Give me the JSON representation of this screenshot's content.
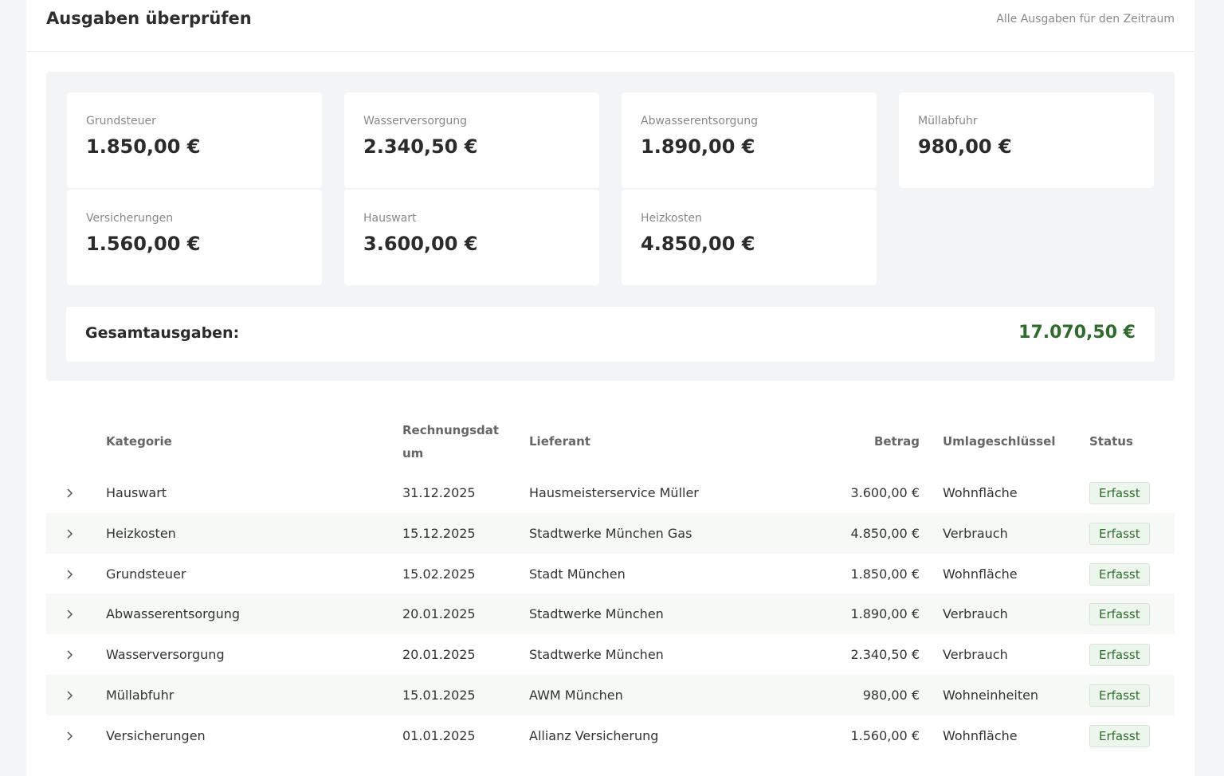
{
  "header": {
    "title": "Ausgaben überprüfen",
    "subtitle": "Alle Ausgaben für den Zeitraum"
  },
  "cards": [
    {
      "label": "Grundsteuer",
      "value": "1.850,00 €"
    },
    {
      "label": "Wasserversorgung",
      "value": "2.340,50 €"
    },
    {
      "label": "Abwasserentsorgung",
      "value": "1.890,00 €"
    },
    {
      "label": "Müllabfuhr",
      "value": "980,00 €"
    },
    {
      "label": "Versicherungen",
      "value": "1.560,00 €"
    },
    {
      "label": "Hauswart",
      "value": "3.600,00 €"
    },
    {
      "label": "Heizkosten",
      "value": "4.850,00 €"
    }
  ],
  "total": {
    "label": "Gesamtausgaben:",
    "value": "17.070,50 €"
  },
  "table": {
    "columns": [
      "Kategorie",
      "Rechnungsdatum",
      "Lieferant",
      "Betrag",
      "Umlageschlüssel",
      "Status"
    ],
    "rows": [
      [
        "Hauswart",
        "31.12.2025",
        "Hausmeisterservice Müller",
        "3.600,00 €",
        "Wohnfläche",
        "Erfasst"
      ],
      [
        "Heizkosten",
        "15.12.2025",
        "Stadtwerke München Gas",
        "4.850,00 €",
        "Verbrauch",
        "Erfasst"
      ],
      [
        "Grundsteuer",
        "15.02.2025",
        "Stadt München",
        "1.850,00 €",
        "Wohnfläche",
        "Erfasst"
      ],
      [
        "Abwasserentsorgung",
        "20.01.2025",
        "Stadtwerke München",
        "1.890,00 €",
        "Verbrauch",
        "Erfasst"
      ],
      [
        "Wasserversorgung",
        "20.01.2025",
        "Stadtwerke München",
        "2.340,50 €",
        "Verbrauch",
        "Erfasst"
      ],
      [
        "Müllabfuhr",
        "15.01.2025",
        "AWM München",
        "980,00 €",
        "Wohneinheiten",
        "Erfasst"
      ],
      [
        "Versicherungen",
        "01.01.2025",
        "Allianz Versicherung",
        "1.560,00 €",
        "Wohnfläche",
        "Erfasst"
      ]
    ]
  }
}
